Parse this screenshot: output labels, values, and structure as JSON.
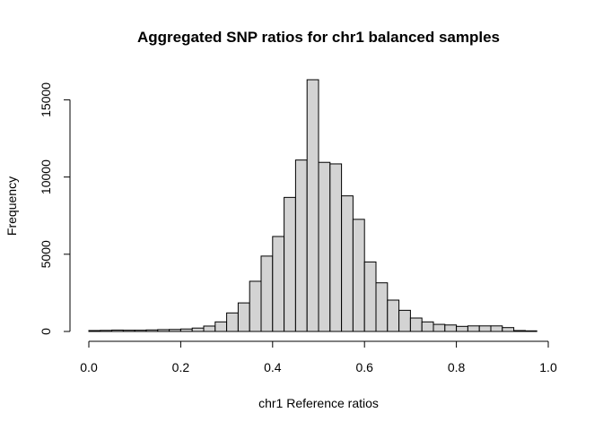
{
  "chart_data": {
    "type": "bar",
    "title": "Aggregated SNP ratios for chr1 balanced samples",
    "xlabel": "chr1 Reference ratios",
    "ylabel": "Frequency",
    "xlim": [
      0.0,
      1.0
    ],
    "ylim": [
      0,
      16300
    ],
    "bin_width": 0.025,
    "bins_start": 0.0,
    "values": [
      60,
      70,
      90,
      80,
      80,
      100,
      120,
      130,
      160,
      220,
      350,
      620,
      1200,
      1850,
      3250,
      4880,
      6150,
      8680,
      11100,
      16300,
      10950,
      10850,
      8780,
      7260,
      4500,
      3150,
      2030,
      1370,
      870,
      620,
      460,
      420,
      330,
      360,
      360,
      360,
      250,
      60,
      40
    ],
    "x_ticks": [
      "0.0",
      "0.2",
      "0.4",
      "0.6",
      "0.8",
      "1.0"
    ],
    "x_tick_values": [
      0.0,
      0.2,
      0.4,
      0.6,
      0.8,
      1.0
    ],
    "y_ticks": [
      "0",
      "5000",
      "10000",
      "15000"
    ],
    "y_tick_values": [
      0,
      5000,
      10000,
      15000
    ],
    "grid": false,
    "colors": {
      "bar_fill": "#d3d3d3",
      "bar_stroke": "#000000"
    }
  }
}
